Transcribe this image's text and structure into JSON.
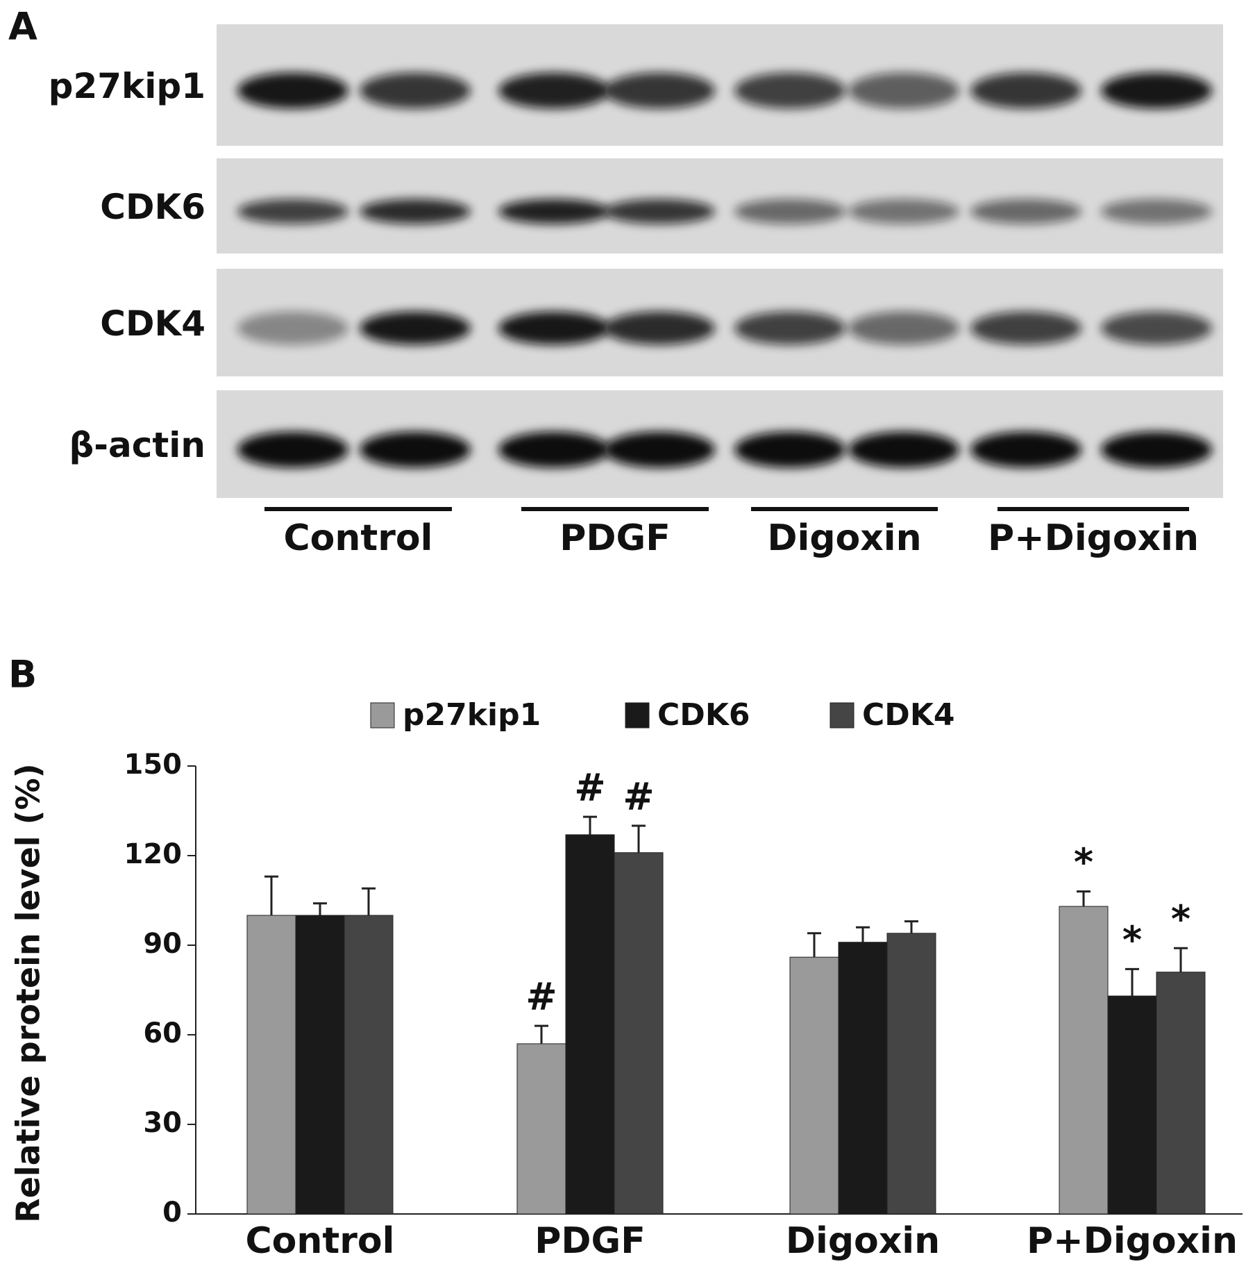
{
  "panel_a": {
    "label": "A",
    "rows": [
      "p27kip1",
      "CDK6",
      "CDK4",
      "β-actin"
    ],
    "groups": [
      "Control",
      "PDGF",
      "Digoxin",
      "P+Digoxin"
    ]
  },
  "chart_data": {
    "type": "bar",
    "panel_label": "B",
    "y_label": "Relative protein level  (%)",
    "categories": [
      "Control",
      "PDGF",
      "Digoxin",
      "P+Digoxin"
    ],
    "series": [
      {
        "name": "p27kip1",
        "color": "#9a9a9a",
        "values": [
          100,
          57,
          86,
          103
        ],
        "errors": [
          13,
          6,
          8,
          5
        ],
        "annotations": [
          null,
          "#",
          null,
          "*"
        ]
      },
      {
        "name": "CDK6",
        "color": "#1a1a1a",
        "values": [
          100,
          127,
          91,
          73
        ],
        "errors": [
          4,
          6,
          5,
          9
        ],
        "annotations": [
          null,
          "#",
          null,
          "*"
        ]
      },
      {
        "name": "CDK4",
        "color": "#454545",
        "values": [
          100,
          121,
          94,
          81
        ],
        "errors": [
          9,
          9,
          4,
          8
        ],
        "annotations": [
          null,
          "#",
          null,
          "*"
        ]
      }
    ],
    "ylim": [
      0,
      150
    ],
    "yticks": [
      0,
      30,
      60,
      90,
      120,
      150
    ]
  }
}
